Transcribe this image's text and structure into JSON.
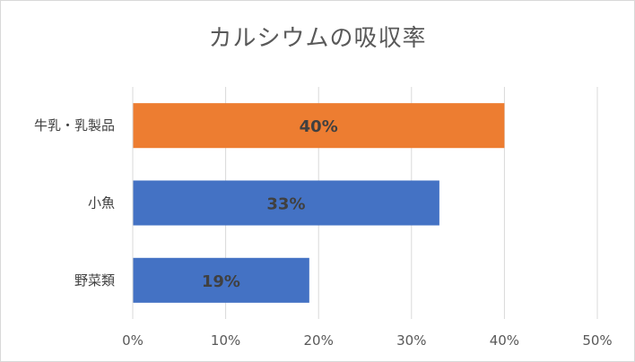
{
  "chart_data": {
    "type": "bar",
    "orientation": "horizontal",
    "title": "カルシウムの吸収率",
    "categories": [
      "牛乳・乳製品",
      "小魚",
      "野菜類"
    ],
    "values": [
      40,
      33,
      19
    ],
    "data_labels": [
      "40%",
      "33%",
      "19%"
    ],
    "bar_colors": [
      "#ED7D31",
      "#4472C4",
      "#4472C4"
    ],
    "xlim": [
      0,
      50
    ],
    "x_ticks": [
      0,
      10,
      20,
      30,
      40,
      50
    ],
    "x_tick_labels": [
      "0%",
      "10%",
      "20%",
      "30%",
      "40%",
      "50%"
    ],
    "grid": true,
    "legend": "none"
  }
}
